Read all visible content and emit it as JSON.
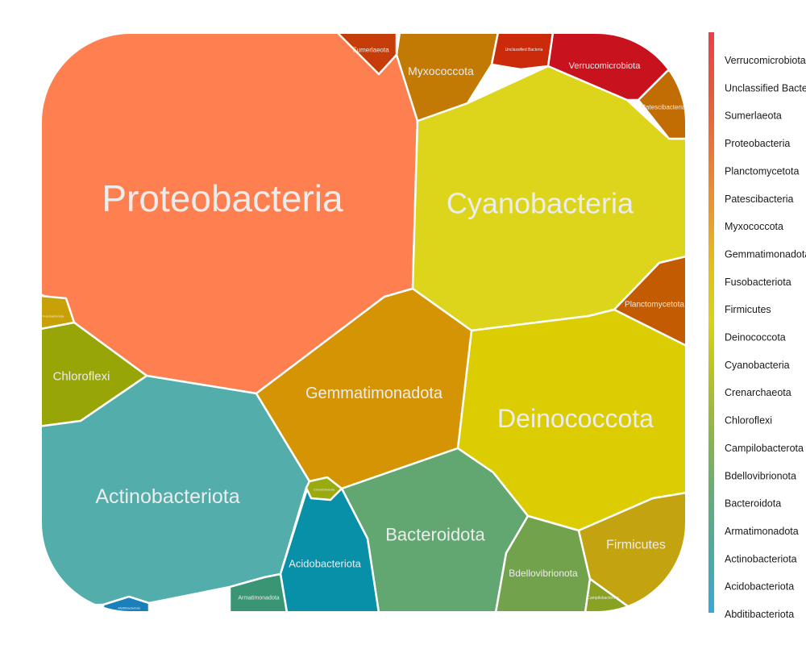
{
  "chart_data": {
    "type": "voronoi-treemap",
    "title": "",
    "cells": [
      {
        "label": "Proteobacteria",
        "color": "#fe7f4f"
      },
      {
        "label": "Cyanobacteria",
        "color": "#dcd51b"
      },
      {
        "label": "Deinococcota",
        "color": "#dccd02"
      },
      {
        "label": "Actinobacteriota",
        "color": "#52adab"
      },
      {
        "label": "Gemmatimonadota",
        "color": "#d59403"
      },
      {
        "label": "Bacteroidota",
        "color": "#62a771"
      },
      {
        "label": "Myxococcota",
        "color": "#c27a04"
      },
      {
        "label": "Chloroflexi",
        "color": "#97a606"
      },
      {
        "label": "Acidobacteriota",
        "color": "#0890a9"
      },
      {
        "label": "Bdellovibrionota",
        "color": "#72a24b"
      },
      {
        "label": "Firmicutes",
        "color": "#c3a310"
      },
      {
        "label": "Planctomycetota",
        "color": "#c35b02"
      },
      {
        "label": "Verrucomicrobiota",
        "color": "#c8131f"
      },
      {
        "label": "Sumerlaeota",
        "color": "#c63d09"
      },
      {
        "label": "Unclassified Bacteria",
        "color": "#cb2a0b"
      },
      {
        "label": "Patescibacteria",
        "color": "#c26c04"
      },
      {
        "label": "Armatimonadota",
        "color": "#3a9575"
      },
      {
        "label": "Campilobacterota",
        "color": "#89a223"
      },
      {
        "label": "Crenarchaeota",
        "color": "#9aab0f"
      },
      {
        "label": "Fusobacteriota",
        "color": "#c8a008"
      },
      {
        "label": "Abditibacteriota",
        "color": "#1a80bb"
      }
    ],
    "legend": {
      "placement": "right",
      "entries": [
        "Verrucomicrobiota",
        "Unclassified Bacteria",
        "Sumerlaeota",
        "Proteobacteria",
        "Planctomycetota",
        "Patescibacteria",
        "Myxococcota",
        "Gemmatimonadota",
        "Fusobacteriota",
        "Firmicutes",
        "Deinococcota",
        "Cyanobacteria",
        "Crenarchaeota",
        "Chloroflexi",
        "Campilobacterota",
        "Bdellovibrionota",
        "Bacteroidota",
        "Armatimonadota",
        "Actinobacteriota",
        "Acidobacteriota",
        "Abditibacteriota"
      ],
      "gradient": [
        "#e8404a",
        "#e55a3a",
        "#e8763a",
        "#ea9630",
        "#e2bd22",
        "#d8d21c",
        "#b4c028",
        "#8ab44e",
        "#66ac78",
        "#4ea9a2",
        "#3aa8d8"
      ]
    }
  }
}
